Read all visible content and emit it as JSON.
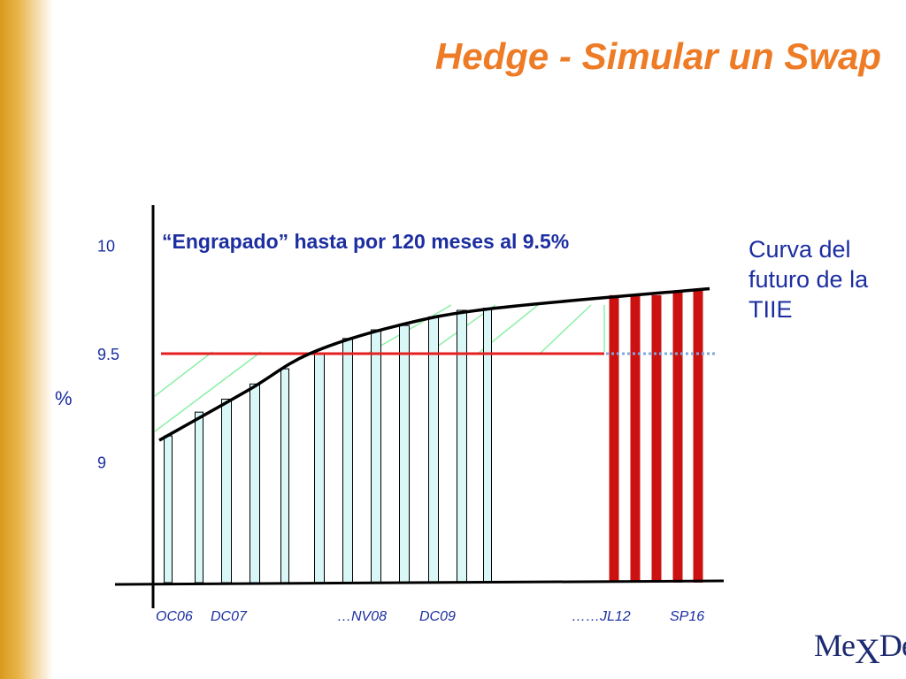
{
  "slide": {
    "title": "Hedge - Simular un Swap",
    "note": "Curva del futuro de la TIIE",
    "logo": {
      "prefix": "Me",
      "x": "X",
      "suffix": "Der"
    }
  },
  "colors": {
    "title": "#ee7b26",
    "text": "#1c2ea0",
    "bar_fill": "#d9f7f7",
    "bar_stroke": "#000000",
    "locked_bar": "#cc1111",
    "fixed_rate_line": "#e52020",
    "fixed_rate_extension": "#7fa8e0",
    "hatch": "#8ef0a8",
    "curve": "#000000"
  },
  "chart_data": {
    "type": "bar",
    "title": "",
    "annotation": "“Engrapado” hasta por 120 meses al 9.5%",
    "ylabel": "%",
    "xlabel": "",
    "ylim": [
      8.2,
      10.3
    ],
    "yticks": [
      {
        "value": 10,
        "label": "10"
      },
      {
        "value": 9.5,
        "label": "9.5"
      },
      {
        "value": 9,
        "label": "9"
      }
    ],
    "x_labels": [
      {
        "bar": 0,
        "label": "OC06"
      },
      {
        "bar": 2,
        "label": "DC07"
      },
      {
        "bar": 8,
        "label": "…NV08"
      },
      {
        "bar": 9,
        "label": "DC09"
      },
      {
        "bar": 17,
        "label": "……JL12"
      },
      {
        "bar": 18,
        "label": "SP16"
      }
    ],
    "bars": [
      {
        "value": 9.12,
        "locked": false
      },
      {
        "value": 9.23,
        "locked": false
      },
      {
        "value": 9.29,
        "locked": false
      },
      {
        "value": 9.36,
        "locked": false
      },
      {
        "value": 9.43,
        "locked": false
      },
      {
        "value": 9.5,
        "locked": false
      },
      {
        "value": 9.57,
        "locked": false
      },
      {
        "value": 9.61,
        "locked": false
      },
      {
        "value": 9.63,
        "locked": false
      },
      {
        "value": 9.67,
        "locked": false
      },
      {
        "value": 9.7,
        "locked": false
      },
      {
        "value": 9.71,
        "locked": false
      },
      {
        "value": 9.77,
        "locked": true
      },
      {
        "value": 9.77,
        "locked": true
      },
      {
        "value": 9.77,
        "locked": true
      },
      {
        "value": 9.79,
        "locked": true
      },
      {
        "value": 9.79,
        "locked": true
      }
    ],
    "fixed_rate": 9.5,
    "curve": [
      9.1,
      9.33,
      9.5,
      9.63,
      9.71,
      9.8
    ],
    "grid": false,
    "legend": "none"
  }
}
